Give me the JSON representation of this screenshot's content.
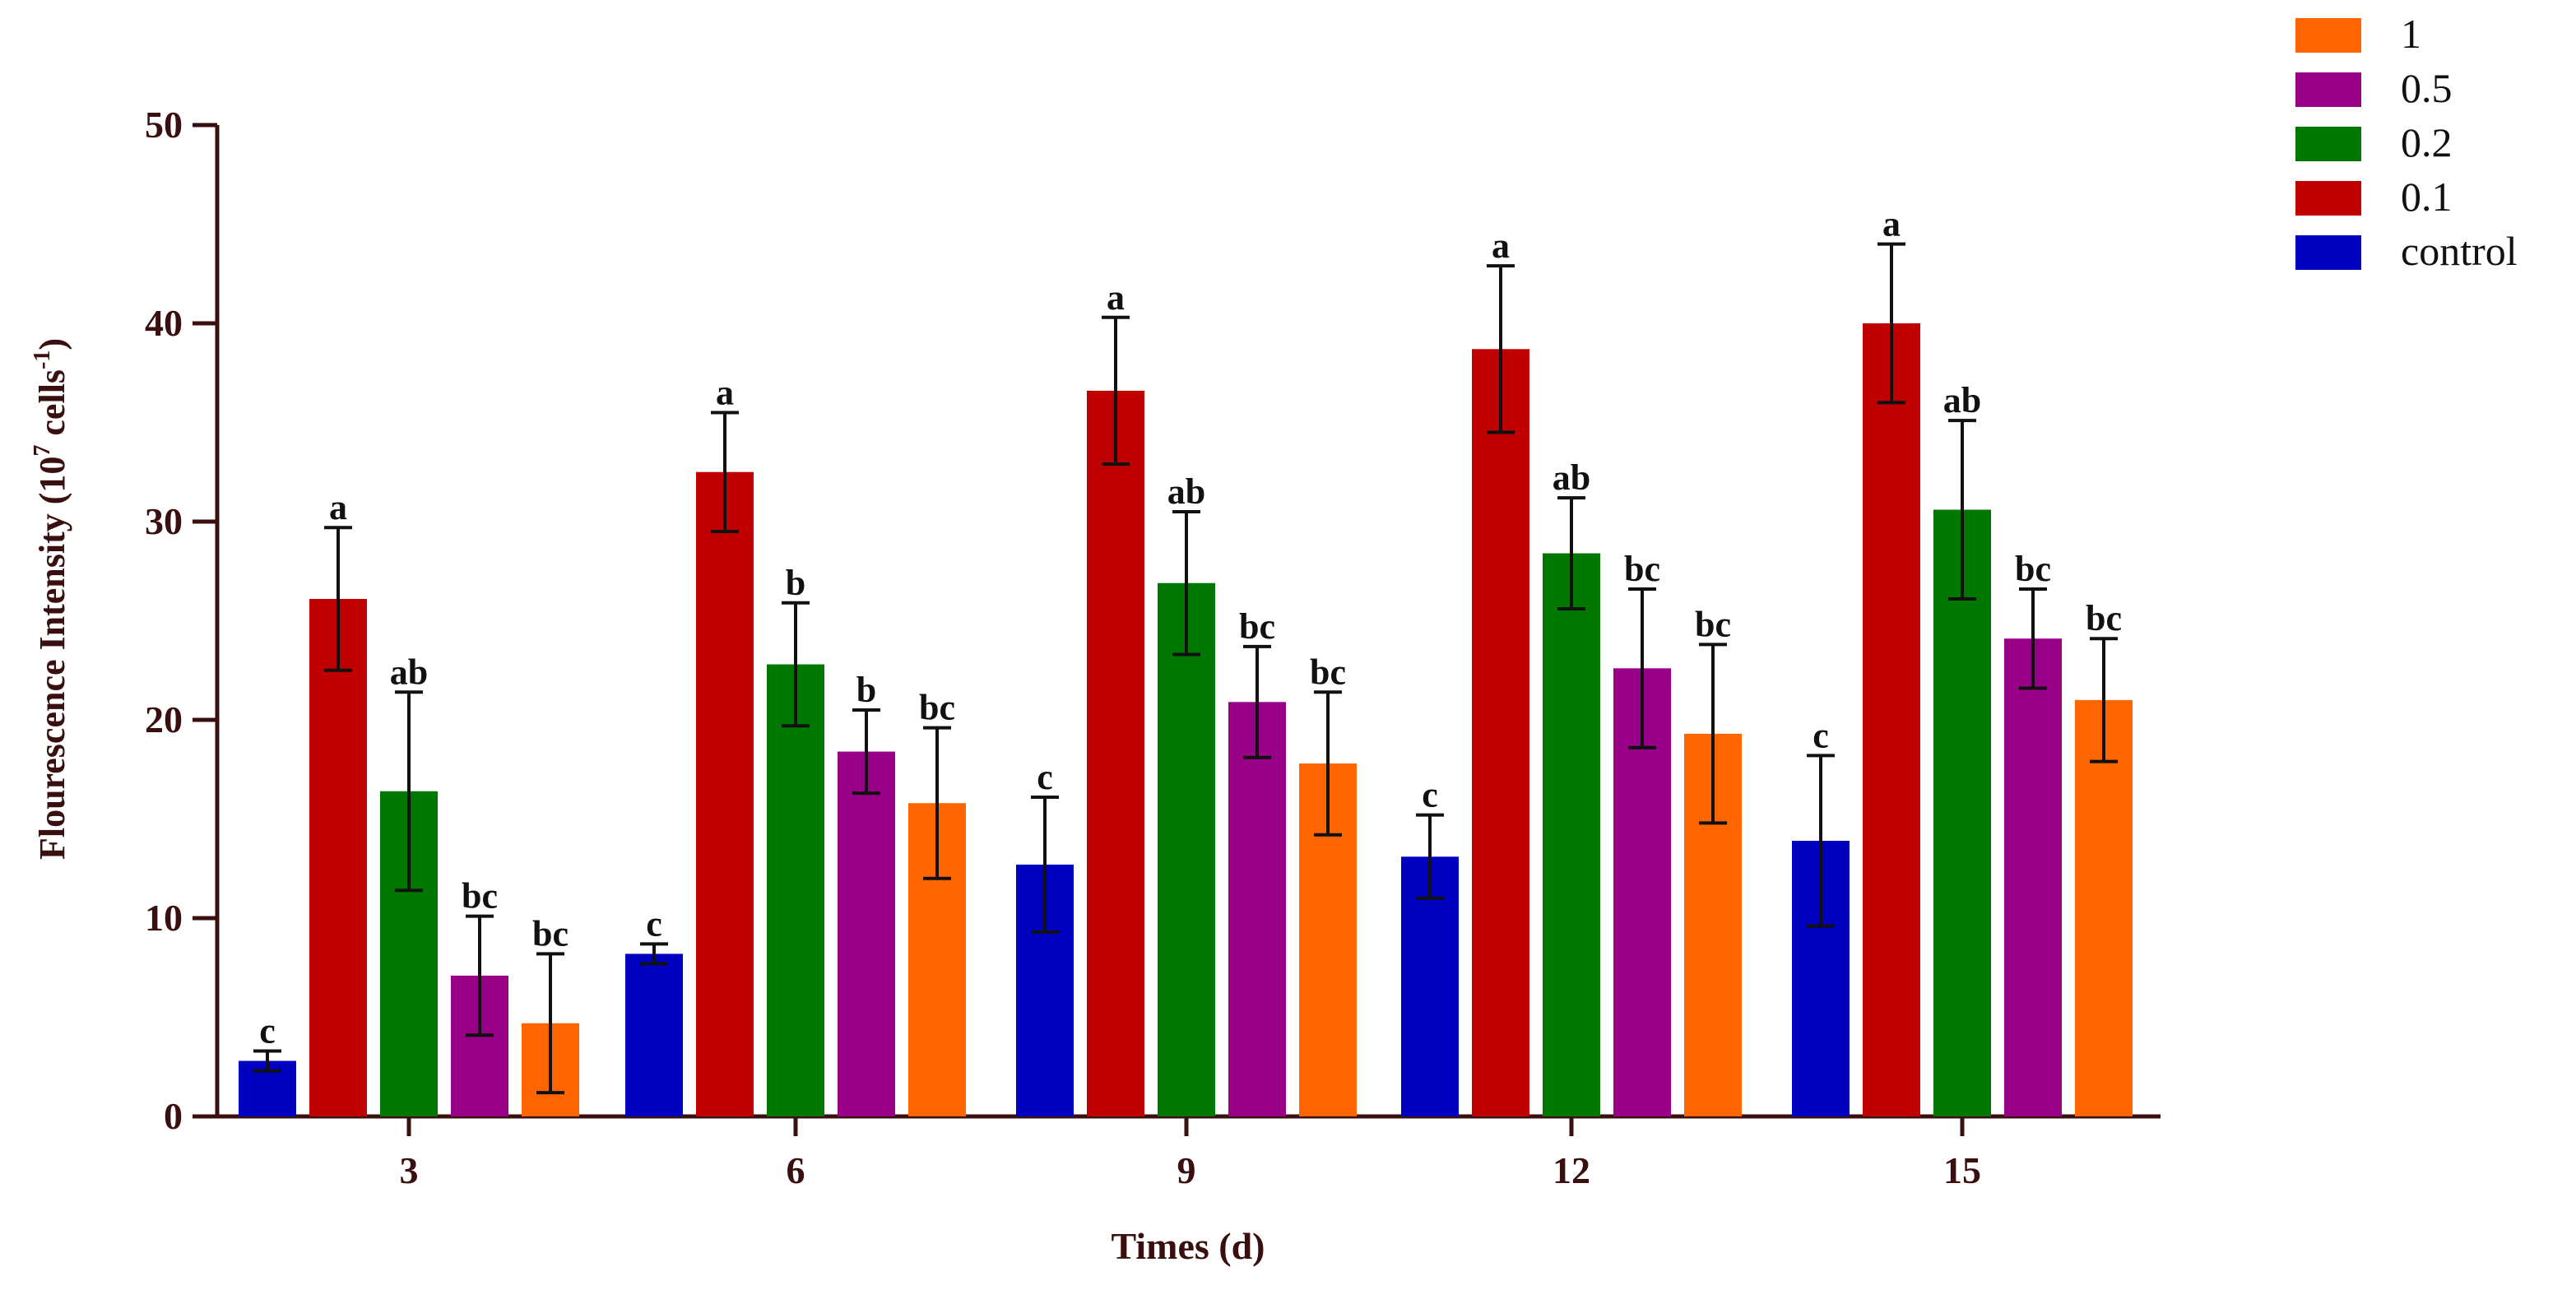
{
  "chart_data": {
    "type": "bar",
    "title": "",
    "xlabel": "Times (d)",
    "ylabel_main": "Flourescence Intensity (10",
    "ylabel_sup1": "7",
    "ylabel_mid": " cells",
    "ylabel_sup2": "-1",
    "ylabel_end": ")",
    "ylim": [
      0,
      50
    ],
    "yticks": [
      "0",
      "10",
      "20",
      "30",
      "40",
      "50"
    ],
    "categories": [
      "3",
      "6",
      "9",
      "12",
      "15"
    ],
    "series": [
      {
        "name": "control",
        "color": "#0000C0",
        "values": [
          2.8,
          8.2,
          12.7,
          13.1,
          13.9
        ],
        "errors": [
          0.5,
          0.5,
          3.4,
          2.1,
          4.3
        ],
        "labels": [
          "c",
          "c",
          "c",
          "c",
          "c"
        ]
      },
      {
        "name": "0.1",
        "color": "#C00000",
        "values": [
          26.1,
          32.5,
          36.6,
          38.7,
          40.0
        ],
        "errors": [
          3.6,
          3.0,
          3.7,
          4.2,
          4.0
        ],
        "labels": [
          "a",
          "a",
          "a",
          "a",
          "a"
        ]
      },
      {
        "name": "0.2",
        "color": "#007700",
        "values": [
          16.4,
          22.8,
          26.9,
          28.4,
          30.6
        ],
        "errors": [
          5.0,
          3.1,
          3.6,
          2.8,
          4.5
        ],
        "labels": [
          "ab",
          "b",
          "ab",
          "ab",
          "ab"
        ]
      },
      {
        "name": "0.5",
        "color": "#990088",
        "values": [
          7.1,
          18.4,
          20.9,
          22.6,
          24.1
        ],
        "errors": [
          3.0,
          2.1,
          2.8,
          4.0,
          2.5
        ],
        "labels": [
          "bc",
          "b",
          "bc",
          "bc",
          "bc"
        ]
      },
      {
        "name": "1",
        "color": "#FF6600",
        "values": [
          4.7,
          15.8,
          17.8,
          19.3,
          21.0
        ],
        "errors": [
          3.5,
          3.8,
          3.6,
          4.5,
          3.1
        ],
        "labels": [
          "bc",
          "bc",
          "bc",
          "bc",
          "bc"
        ]
      }
    ],
    "legend": {
      "placement": "top-right",
      "order": [
        "1",
        "0.5",
        "0.2",
        "0.1",
        "control"
      ]
    }
  }
}
